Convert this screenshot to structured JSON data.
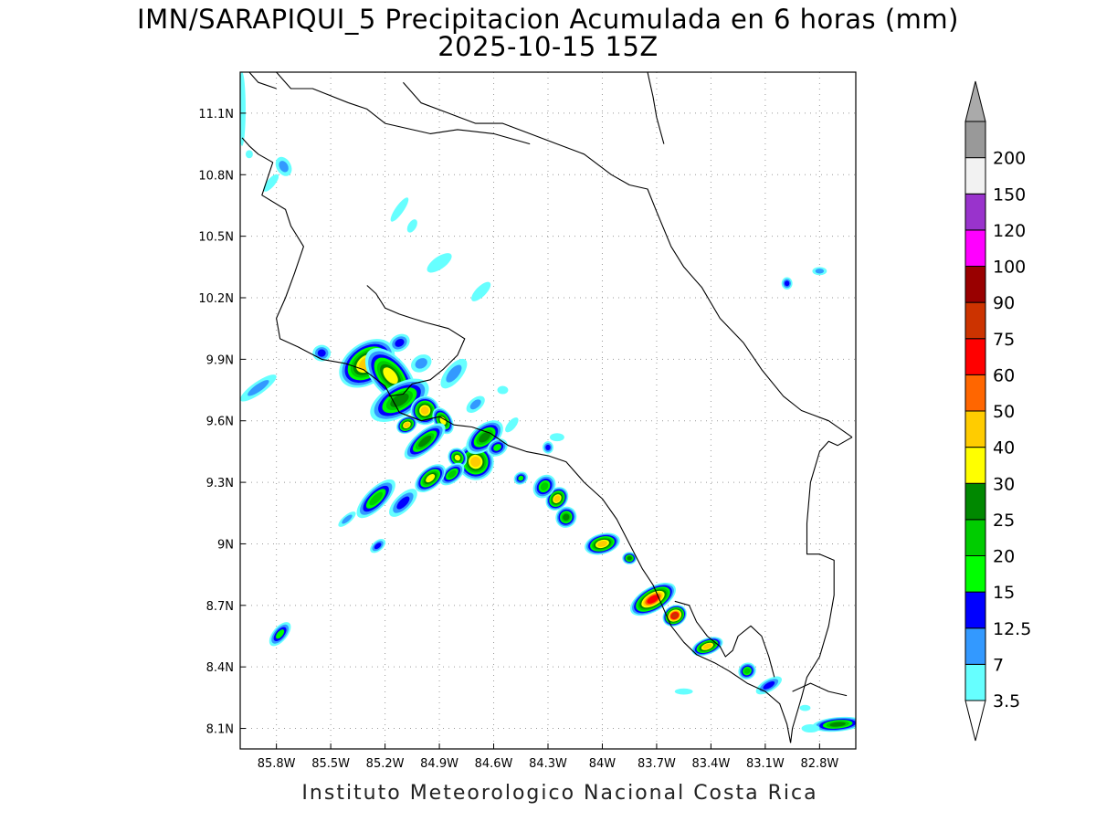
{
  "title": {
    "line1": "IMN/SARAPIQUI_5 Precipitacion Acumulada en 6 horas (mm)",
    "line2": "2025-10-15 15Z"
  },
  "footer": "Instituto Meteorologico Nacional Costa Rica",
  "map": {
    "lon_range": [
      -86.0,
      -82.6
    ],
    "lat_range": [
      8.0,
      11.3
    ],
    "lat_ticks": [
      {
        "value": 11.1,
        "label": "11.1N"
      },
      {
        "value": 10.8,
        "label": "10.8N"
      },
      {
        "value": 10.5,
        "label": "10.5N"
      },
      {
        "value": 10.2,
        "label": "10.2N"
      },
      {
        "value": 9.9,
        "label": "9.9N"
      },
      {
        "value": 9.6,
        "label": "9.6N"
      },
      {
        "value": 9.3,
        "label": "9.3N"
      },
      {
        "value": 9.0,
        "label": "9N"
      },
      {
        "value": 8.7,
        "label": "8.7N"
      },
      {
        "value": 8.4,
        "label": "8.4N"
      },
      {
        "value": 8.1,
        "label": "8.1N"
      }
    ],
    "lon_ticks": [
      {
        "value": -85.8,
        "label": "85.8W"
      },
      {
        "value": -85.5,
        "label": "85.5W"
      },
      {
        "value": -85.2,
        "label": "85.2W"
      },
      {
        "value": -84.9,
        "label": "84.9W"
      },
      {
        "value": -84.6,
        "label": "84.6W"
      },
      {
        "value": -84.3,
        "label": "84.3W"
      },
      {
        "value": -84.0,
        "label": "84W"
      },
      {
        "value": -83.7,
        "label": "83.7W"
      },
      {
        "value": -83.4,
        "label": "83.4W"
      },
      {
        "value": -83.1,
        "label": "83.1W"
      },
      {
        "value": -82.8,
        "label": "82.8W"
      }
    ],
    "grid": "dotted",
    "coastlines": [
      [
        [
          -85.99,
          10.98
        ],
        [
          -85.95,
          10.94
        ],
        [
          -85.9,
          10.9
        ],
        [
          -85.82,
          10.86
        ],
        [
          -85.85,
          10.78
        ],
        [
          -85.88,
          10.7
        ],
        [
          -85.75,
          10.63
        ],
        [
          -85.72,
          10.55
        ],
        [
          -85.65,
          10.45
        ],
        [
          -85.7,
          10.32
        ],
        [
          -85.75,
          10.2
        ],
        [
          -85.8,
          10.1
        ],
        [
          -85.78,
          10.0
        ],
        [
          -85.68,
          9.96
        ],
        [
          -85.55,
          9.9
        ],
        [
          -85.42,
          9.88
        ],
        [
          -85.32,
          9.85
        ],
        [
          -85.2,
          9.77
        ],
        [
          -85.12,
          9.64
        ],
        [
          -85.0,
          9.6
        ],
        [
          -84.9,
          9.62
        ],
        [
          -84.82,
          9.58
        ],
        [
          -84.72,
          9.57
        ],
        [
          -84.62,
          9.54
        ],
        [
          -84.52,
          9.48
        ],
        [
          -84.42,
          9.45
        ],
        [
          -84.3,
          9.43
        ],
        [
          -84.2,
          9.4
        ],
        [
          -84.1,
          9.3
        ],
        [
          -84.0,
          9.22
        ],
        [
          -83.92,
          9.12
        ],
        [
          -83.85,
          9.0
        ],
        [
          -83.78,
          8.88
        ],
        [
          -83.72,
          8.8
        ],
        [
          -83.68,
          8.72
        ],
        [
          -83.62,
          8.6
        ],
        [
          -83.55,
          8.52
        ],
        [
          -83.48,
          8.46
        ],
        [
          -83.38,
          8.42
        ],
        [
          -83.3,
          8.38
        ],
        [
          -83.2,
          8.32
        ],
        [
          -83.1,
          8.28
        ],
        [
          -83.02,
          8.22
        ],
        [
          -82.98,
          8.12
        ],
        [
          -82.96,
          8.03
        ]
      ],
      [
        [
          -85.18,
          9.72
        ],
        [
          -85.1,
          9.73
        ],
        [
          -85.05,
          9.78
        ],
        [
          -84.95,
          9.8
        ],
        [
          -84.88,
          9.85
        ],
        [
          -84.8,
          9.92
        ],
        [
          -84.76,
          10.0
        ],
        [
          -84.85,
          10.05
        ],
        [
          -84.98,
          10.08
        ],
        [
          -85.05,
          10.1
        ],
        [
          -85.12,
          10.12
        ],
        [
          -85.2,
          10.15
        ],
        [
          -85.25,
          10.22
        ],
        [
          -85.3,
          10.26
        ]
      ],
      [
        [
          -85.1,
          11.25
        ],
        [
          -85.0,
          11.15
        ],
        [
          -84.85,
          11.1
        ],
        [
          -84.7,
          11.05
        ],
        [
          -84.55,
          11.05
        ],
        [
          -84.4,
          11.0
        ],
        [
          -84.25,
          10.95
        ],
        [
          -84.1,
          10.9
        ],
        [
          -83.95,
          10.8
        ],
        [
          -83.85,
          10.75
        ],
        [
          -83.75,
          10.73
        ],
        [
          -83.7,
          10.62
        ],
        [
          -83.62,
          10.45
        ],
        [
          -83.55,
          10.35
        ],
        [
          -83.45,
          10.25
        ],
        [
          -83.35,
          10.1
        ],
        [
          -83.22,
          9.98
        ],
        [
          -83.12,
          9.85
        ],
        [
          -83.0,
          9.72
        ],
        [
          -82.9,
          9.65
        ],
        [
          -82.75,
          9.6
        ],
        [
          -82.62,
          9.52
        ]
      ],
      [
        [
          -85.95,
          11.3
        ],
        [
          -85.9,
          11.25
        ],
        [
          -85.8,
          11.22
        ]
      ],
      [
        [
          -83.75,
          11.3
        ],
        [
          -83.72,
          11.18
        ],
        [
          -83.7,
          11.08
        ],
        [
          -83.66,
          10.95
        ]
      ]
    ],
    "borders": [
      [
        [
          -85.8,
          11.3
        ],
        [
          -85.72,
          11.22
        ],
        [
          -85.6,
          11.22
        ],
        [
          -85.4,
          11.15
        ],
        [
          -85.3,
          11.12
        ],
        [
          -85.2,
          11.05
        ],
        [
          -84.95,
          11.0
        ],
        [
          -84.8,
          11.02
        ],
        [
          -84.6,
          11.0
        ],
        [
          -84.4,
          10.95
        ]
      ],
      [
        [
          -82.62,
          9.52
        ],
        [
          -82.7,
          9.48
        ],
        [
          -82.75,
          9.5
        ],
        [
          -82.8,
          9.45
        ],
        [
          -82.85,
          9.3
        ],
        [
          -82.87,
          9.1
        ],
        [
          -82.87,
          8.95
        ],
        [
          -82.8,
          8.95
        ],
        [
          -82.72,
          8.92
        ],
        [
          -82.72,
          8.75
        ],
        [
          -82.75,
          8.6
        ],
        [
          -82.8,
          8.45
        ],
        [
          -82.87,
          8.35
        ],
        [
          -82.9,
          8.25
        ],
        [
          -82.95,
          8.1
        ],
        [
          -82.96,
          8.03
        ]
      ],
      [
        [
          -83.6,
          8.72
        ],
        [
          -83.52,
          8.7
        ],
        [
          -83.48,
          8.62
        ],
        [
          -83.42,
          8.55
        ],
        [
          -83.35,
          8.5
        ],
        [
          -83.32,
          8.45
        ],
        [
          -83.28,
          8.48
        ],
        [
          -83.25,
          8.55
        ],
        [
          -83.18,
          8.6
        ],
        [
          -83.12,
          8.55
        ],
        [
          -83.08,
          8.45
        ],
        [
          -83.05,
          8.35
        ]
      ],
      [
        [
          -82.95,
          8.28
        ],
        [
          -82.85,
          8.32
        ],
        [
          -82.75,
          8.28
        ],
        [
          -82.65,
          8.26
        ]
      ]
    ],
    "precip_blobs": [
      {
        "lon": -85.3,
        "lat": 9.88,
        "rx": 0.17,
        "ry": 0.1,
        "rot": -35,
        "max": 40
      },
      {
        "lon": -85.17,
        "lat": 9.82,
        "rx": 0.1,
        "ry": 0.16,
        "rot": -40,
        "max": 30
      },
      {
        "lon": -85.12,
        "lat": 9.7,
        "rx": 0.18,
        "ry": 0.08,
        "rot": -30,
        "max": 25
      },
      {
        "lon": -85.55,
        "lat": 9.93,
        "rx": 0.05,
        "ry": 0.04,
        "rot": 0,
        "max": 12.5
      },
      {
        "lon": -85.9,
        "lat": 9.76,
        "rx": 0.12,
        "ry": 0.03,
        "rot": -35,
        "max": 7
      },
      {
        "lon": -84.98,
        "lat": 9.65,
        "rx": 0.08,
        "ry": 0.07,
        "rot": -40,
        "max": 40
      },
      {
        "lon": -84.88,
        "lat": 9.6,
        "rx": 0.05,
        "ry": 0.07,
        "rot": -30,
        "max": 30
      },
      {
        "lon": -85.08,
        "lat": 9.58,
        "rx": 0.06,
        "ry": 0.04,
        "rot": -30,
        "max": 40
      },
      {
        "lon": -84.98,
        "lat": 9.5,
        "rx": 0.14,
        "ry": 0.05,
        "rot": -40,
        "max": 25
      },
      {
        "lon": -84.7,
        "lat": 9.4,
        "rx": 0.1,
        "ry": 0.09,
        "rot": -40,
        "max": 40
      },
      {
        "lon": -84.8,
        "lat": 9.42,
        "rx": 0.05,
        "ry": 0.05,
        "rot": -40,
        "max": 30
      },
      {
        "lon": -84.65,
        "lat": 9.52,
        "rx": 0.12,
        "ry": 0.06,
        "rot": -40,
        "max": 25
      },
      {
        "lon": -84.83,
        "lat": 9.34,
        "rx": 0.08,
        "ry": 0.04,
        "rot": -40,
        "max": 20
      },
      {
        "lon": -84.95,
        "lat": 9.32,
        "rx": 0.1,
        "ry": 0.05,
        "rot": -40,
        "max": 30
      },
      {
        "lon": -85.25,
        "lat": 9.22,
        "rx": 0.14,
        "ry": 0.05,
        "rot": -45,
        "max": 20
      },
      {
        "lon": -85.1,
        "lat": 9.2,
        "rx": 0.1,
        "ry": 0.04,
        "rot": -45,
        "max": 12.5
      },
      {
        "lon": -84.58,
        "lat": 9.47,
        "rx": 0.06,
        "ry": 0.04,
        "rot": -30,
        "max": 15
      },
      {
        "lon": -84.45,
        "lat": 9.32,
        "rx": 0.04,
        "ry": 0.03,
        "rot": -30,
        "max": 15
      },
      {
        "lon": -84.3,
        "lat": 9.47,
        "rx": 0.03,
        "ry": 0.03,
        "rot": 0,
        "max": 12.5
      },
      {
        "lon": -84.25,
        "lat": 9.22,
        "rx": 0.07,
        "ry": 0.05,
        "rot": -50,
        "max": 40
      },
      {
        "lon": -84.32,
        "lat": 9.28,
        "rx": 0.07,
        "ry": 0.05,
        "rot": -50,
        "max": 20
      },
      {
        "lon": -84.2,
        "lat": 9.13,
        "rx": 0.06,
        "ry": 0.05,
        "rot": -50,
        "max": 25
      },
      {
        "lon": -84.0,
        "lat": 9.0,
        "rx": 0.1,
        "ry": 0.05,
        "rot": -15,
        "max": 40
      },
      {
        "lon": -83.85,
        "lat": 8.93,
        "rx": 0.04,
        "ry": 0.03,
        "rot": 0,
        "max": 25
      },
      {
        "lon": -83.72,
        "lat": 8.73,
        "rx": 0.14,
        "ry": 0.06,
        "rot": -30,
        "max": 60
      },
      {
        "lon": -83.6,
        "lat": 8.65,
        "rx": 0.07,
        "ry": 0.05,
        "rot": -30,
        "max": 75
      },
      {
        "lon": -83.42,
        "lat": 8.5,
        "rx": 0.09,
        "ry": 0.04,
        "rot": -20,
        "max": 40
      },
      {
        "lon": -83.2,
        "lat": 8.38,
        "rx": 0.05,
        "ry": 0.04,
        "rot": -30,
        "max": 20
      },
      {
        "lon": -83.08,
        "lat": 8.31,
        "rx": 0.08,
        "ry": 0.03,
        "rot": -30,
        "max": 12.5
      },
      {
        "lon": -82.7,
        "lat": 8.12,
        "rx": 0.14,
        "ry": 0.035,
        "rot": -5,
        "max": 25
      },
      {
        "lon": -85.78,
        "lat": 8.56,
        "rx": 0.08,
        "ry": 0.035,
        "rot": -50,
        "max": 15
      },
      {
        "lon": -85.24,
        "lat": 8.99,
        "rx": 0.05,
        "ry": 0.025,
        "rot": -40,
        "max": 12.5
      },
      {
        "lon": -85.41,
        "lat": 9.12,
        "rx": 0.06,
        "ry": 0.02,
        "rot": -40,
        "max": 7
      },
      {
        "lon": -82.98,
        "lat": 10.27,
        "rx": 0.03,
        "ry": 0.03,
        "rot": 0,
        "max": 12.5
      },
      {
        "lon": -82.8,
        "lat": 10.33,
        "rx": 0.04,
        "ry": 0.02,
        "rot": 0,
        "max": 7
      },
      {
        "lon": -85.76,
        "lat": 10.84,
        "rx": 0.04,
        "ry": 0.05,
        "rot": -30,
        "max": 7
      },
      {
        "lon": -85.83,
        "lat": 10.76,
        "rx": 0.06,
        "ry": 0.02,
        "rot": -50,
        "max": 3.5
      },
      {
        "lon": -85.95,
        "lat": 10.9,
        "rx": 0.02,
        "ry": 0.02,
        "rot": 0,
        "max": 3.5
      },
      {
        "lon": -85.12,
        "lat": 10.63,
        "rx": 0.08,
        "ry": 0.02,
        "rot": -55,
        "max": 3.5
      },
      {
        "lon": -85.05,
        "lat": 10.55,
        "rx": 0.04,
        "ry": 0.02,
        "rot": -60,
        "max": 3.5
      },
      {
        "lon": -84.9,
        "lat": 10.37,
        "rx": 0.08,
        "ry": 0.03,
        "rot": -35,
        "max": 3.5
      },
      {
        "lon": -84.67,
        "lat": 10.23,
        "rx": 0.07,
        "ry": 0.025,
        "rot": -45,
        "max": 3.5
      },
      {
        "lon": -84.82,
        "lat": 9.83,
        "rx": 0.1,
        "ry": 0.04,
        "rot": -50,
        "max": 7
      },
      {
        "lon": -84.55,
        "lat": 9.75,
        "rx": 0.03,
        "ry": 0.02,
        "rot": 0,
        "max": 3.5
      },
      {
        "lon": -84.7,
        "lat": 9.68,
        "rx": 0.06,
        "ry": 0.03,
        "rot": -40,
        "max": 7
      },
      {
        "lon": -84.5,
        "lat": 9.58,
        "rx": 0.05,
        "ry": 0.02,
        "rot": -50,
        "max": 3.5
      },
      {
        "lon": -84.25,
        "lat": 9.52,
        "rx": 0.04,
        "ry": 0.02,
        "rot": 0,
        "max": 3.5
      },
      {
        "lon": -85.12,
        "lat": 9.98,
        "rx": 0.06,
        "ry": 0.04,
        "rot": -30,
        "max": 12.5
      },
      {
        "lon": -85.0,
        "lat": 9.88,
        "rx": 0.06,
        "ry": 0.04,
        "rot": -30,
        "max": 7
      },
      {
        "lon": -85.99,
        "lat": 11.12,
        "rx": 0.02,
        "ry": 0.18,
        "rot": 0,
        "max": 3.5
      },
      {
        "lon": -83.55,
        "lat": 8.28,
        "rx": 0.05,
        "ry": 0.015,
        "rot": 0,
        "max": 3.5
      },
      {
        "lon": -82.85,
        "lat": 8.1,
        "rx": 0.05,
        "ry": 0.02,
        "rot": 0,
        "max": 3.5
      },
      {
        "lon": -82.88,
        "lat": 8.2,
        "rx": 0.03,
        "ry": 0.015,
        "rot": 0,
        "max": 3.5
      }
    ]
  },
  "colorbar": {
    "levels": [
      {
        "label": "3.5",
        "color": "#66ffff"
      },
      {
        "label": "7",
        "color": "#3399ff"
      },
      {
        "label": "12.5",
        "color": "#0000ff"
      },
      {
        "label": "15",
        "color": "#00ff00"
      },
      {
        "label": "20",
        "color": "#00cc00"
      },
      {
        "label": "25",
        "color": "#008800"
      },
      {
        "label": "30",
        "color": "#ffff00"
      },
      {
        "label": "40",
        "color": "#ffcc00"
      },
      {
        "label": "50",
        "color": "#ff6600"
      },
      {
        "label": "60",
        "color": "#ff0000"
      },
      {
        "label": "75",
        "color": "#cc3300"
      },
      {
        "label": "90",
        "color": "#990000"
      },
      {
        "label": "100",
        "color": "#ff00ff"
      },
      {
        "label": "120",
        "color": "#9933cc"
      },
      {
        "label": "150",
        "color": "#f2f2f2"
      },
      {
        "label": "200",
        "color": "#999999"
      }
    ],
    "below_color": "#ffffff",
    "above_color": "#aaaaaa"
  }
}
